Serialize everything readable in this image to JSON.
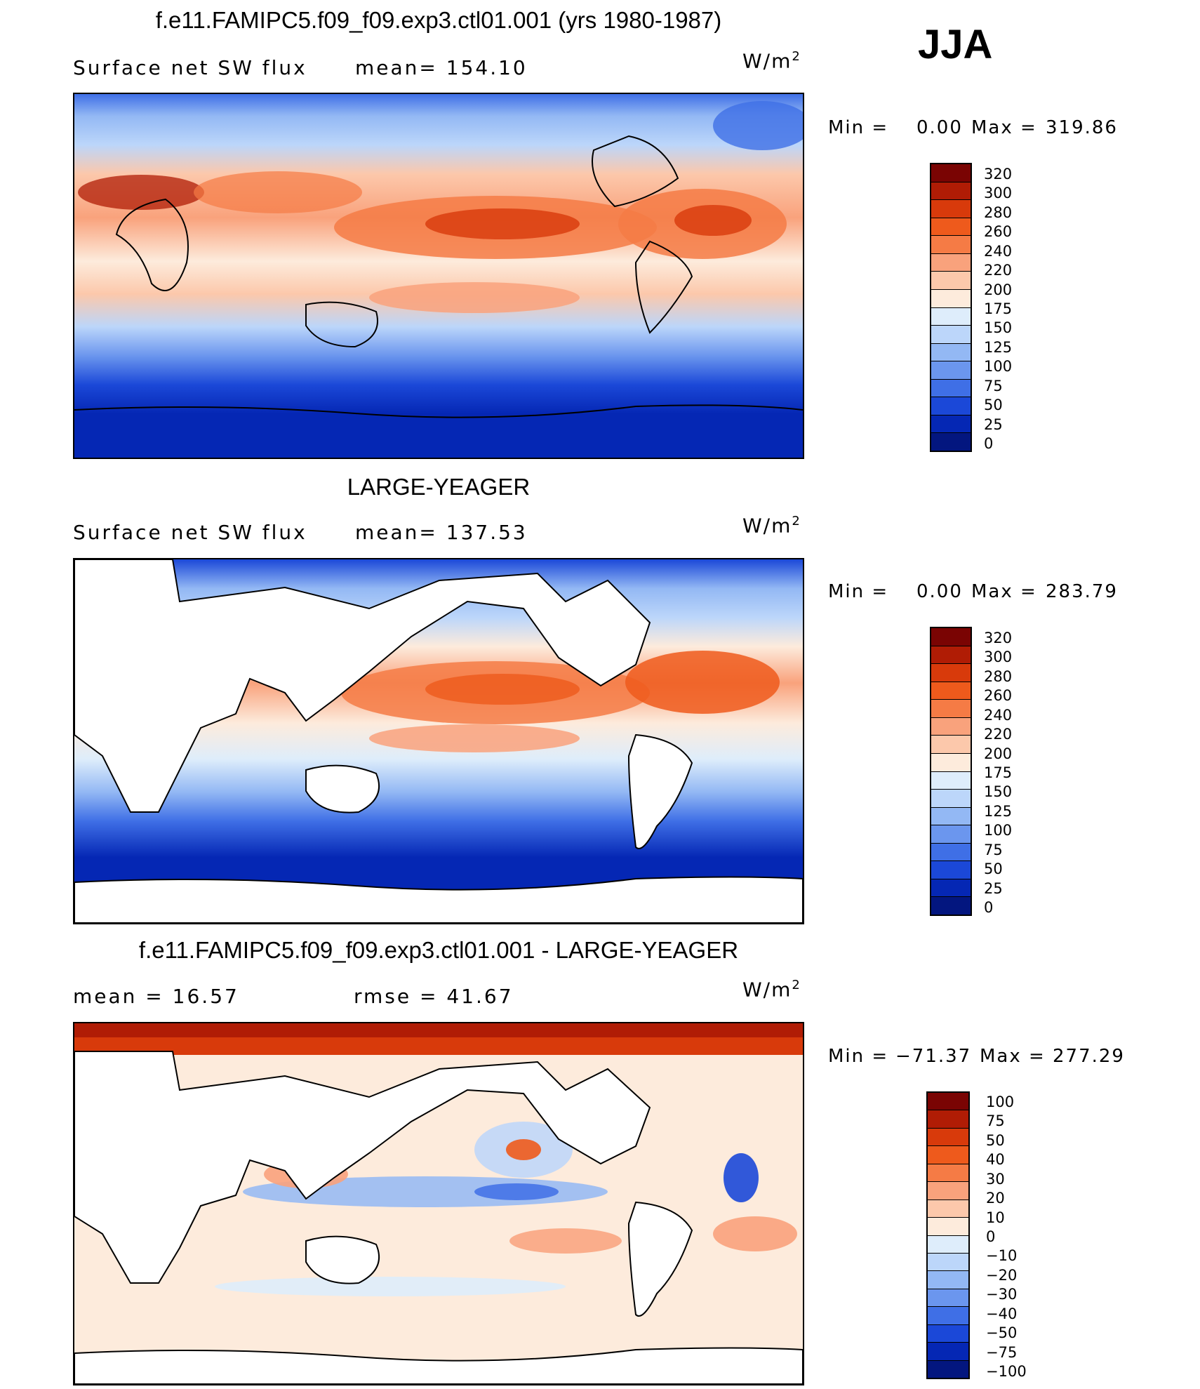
{
  "season": "JJA",
  "units": {
    "base": "W/m",
    "exp": "2"
  },
  "panels": [
    {
      "title": "f.e11.FAMIPC5.f09_f09.exp3.ctl01.001 (yrs 1980-1987)",
      "left_label": "Surface net SW flux",
      "right_label": "mean= 154.10",
      "min_label": "Min =",
      "min_value": "0.00",
      "max_label": "Max =",
      "max_value": "319.86",
      "colorbar": [
        "320",
        "300",
        "280",
        "260",
        "240",
        "220",
        "200",
        "175",
        "150",
        "125",
        "100",
        "75",
        "50",
        "25",
        "0"
      ]
    },
    {
      "title": "LARGE-YEAGER",
      "left_label": "Surface net SW flux",
      "right_label": "mean= 137.53",
      "min_label": "Min =",
      "min_value": "0.00",
      "max_label": "Max =",
      "max_value": "283.79",
      "colorbar": [
        "320",
        "300",
        "280",
        "260",
        "240",
        "220",
        "200",
        "175",
        "150",
        "125",
        "100",
        "75",
        "50",
        "25",
        "0"
      ]
    },
    {
      "title": "f.e11.FAMIPC5.f09_f09.exp3.ctl01.001 - LARGE-YEAGER",
      "left_label": "mean =   16.57",
      "right_label": "rmse =   41.67",
      "min_label": "Min =",
      "min_value": "−71.37",
      "max_label": "Max =",
      "max_value": "277.29",
      "colorbar": [
        "100",
        "75",
        "50",
        "40",
        "30",
        "20",
        "10",
        "0",
        "−10",
        "−20",
        "−30",
        "−40",
        "−50",
        "−75",
        "−100"
      ]
    }
  ],
  "palette": {
    "abs": [
      "#7a0403",
      "#b01c05",
      "#d83a0b",
      "#ee5a1c",
      "#f57b45",
      "#f9a27c",
      "#fcc8ab",
      "#fdebdc",
      "#deedfb",
      "#bcd6fa",
      "#93b8f4",
      "#6b96ee",
      "#3f6fe6",
      "#1b48d8",
      "#0527b4",
      "#03167f"
    ],
    "diff": [
      "#7a0403",
      "#b01c05",
      "#d83a0b",
      "#ee5a1c",
      "#f57b45",
      "#f9a27c",
      "#fcc8ab",
      "#fdebdc",
      "#deedfb",
      "#bcd6fa",
      "#93b8f4",
      "#6b96ee",
      "#3f6fe6",
      "#1b48d8",
      "#0527b4",
      "#03167f"
    ]
  }
}
